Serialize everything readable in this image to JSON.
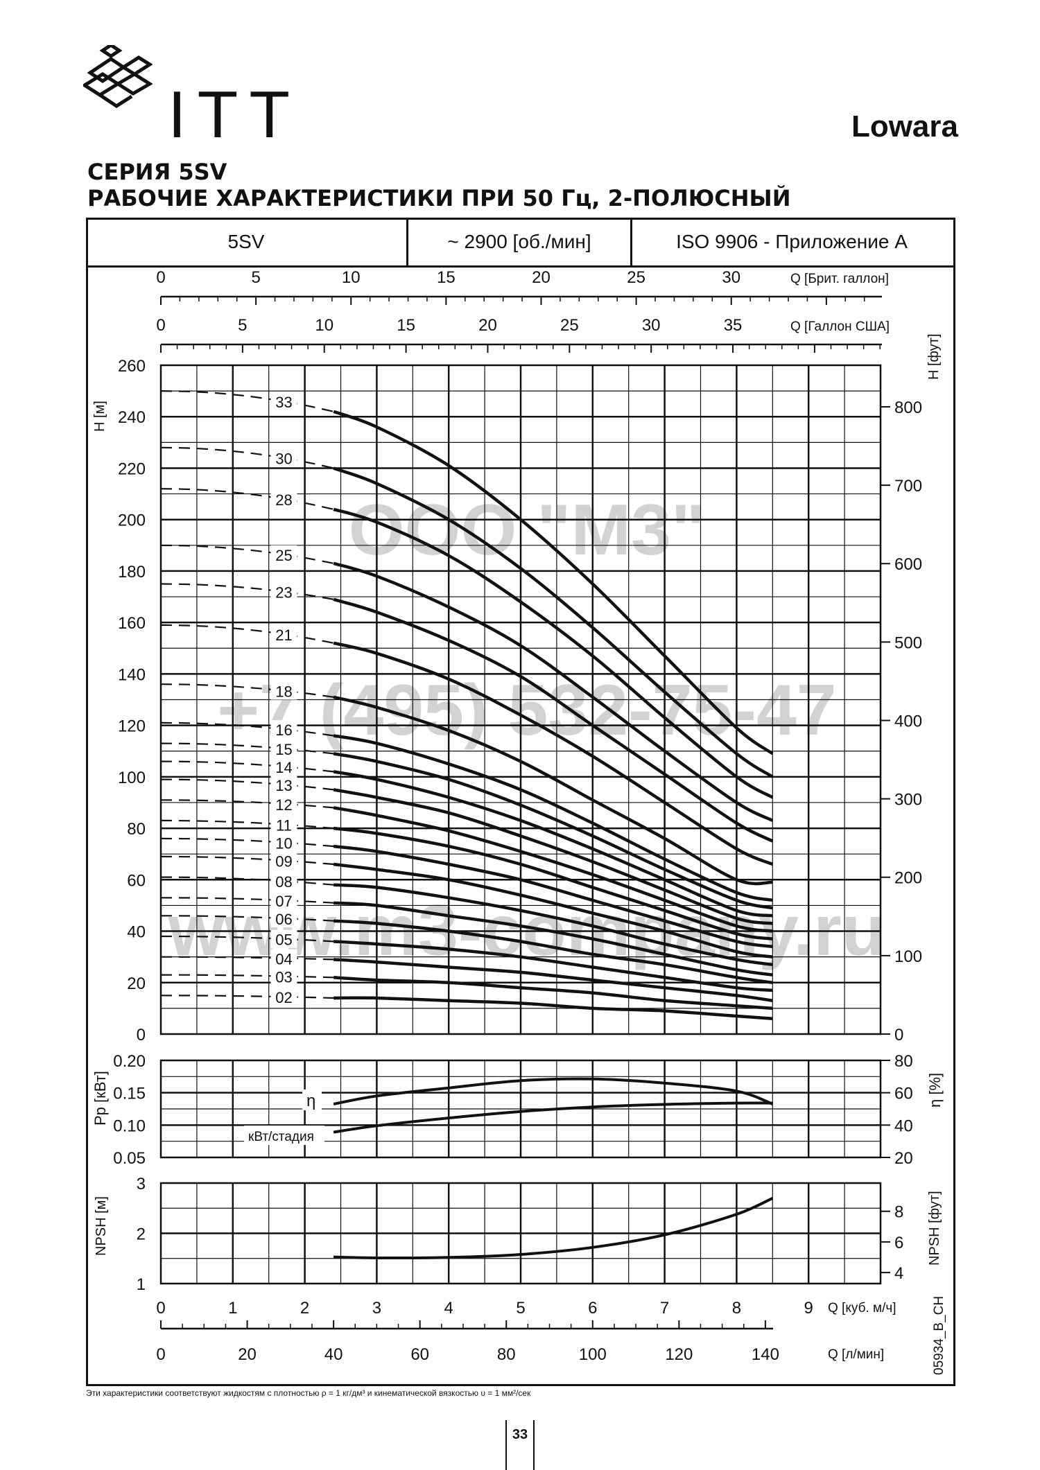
{
  "header": {
    "brand": "ITT",
    "brand2": "Lowara",
    "title_line1": "СЕРИЯ 5SV",
    "title_line2": "РАБОЧИЕ ХАРАКТЕРИСТИКИ ПРИ 50 Гц, 2-ПОЛЮСНЫЙ"
  },
  "table_header": {
    "model": "5SV",
    "speed": "~ 2900 [об./мин]",
    "standard": "ISO 9906 - Приложение A"
  },
  "watermarks": [
    "ООО \"М3\"",
    "+7 (495) 532-75-47",
    "www.m3-company.ru"
  ],
  "footnote": "Эти характеристики соответствуют жидкостям с плотностью ρ = 1 кг/дм³ и кинематической вязкостью υ = 1 мм²/сек",
  "page_number": "33",
  "code": "05934_B_CH",
  "colors": {
    "ink": "#111111",
    "watermark": "#d2d2d2"
  },
  "chart_data": [
    {
      "type": "line",
      "name": "head",
      "x_unit": "Q [куб. м/ч]",
      "xlim": [
        0,
        10
      ],
      "ylim": [
        0,
        260
      ],
      "ylabel": "H [м]",
      "ylabel_right": "H [фут]",
      "y_ticks": [
        0,
        20,
        40,
        60,
        80,
        100,
        120,
        140,
        160,
        180,
        200,
        220,
        240,
        260
      ],
      "y_right_ticks": [
        0,
        100,
        200,
        300,
        400,
        500,
        600,
        700,
        800
      ],
      "top_axes": [
        {
          "label": "Q [Брит. галлон]",
          "ticks": [
            "0",
            "5",
            "10",
            "15",
            "20",
            "25",
            "30"
          ],
          "step": 5,
          "scale": 0.2642
        },
        {
          "label": "Q [Галлон США]",
          "ticks": [
            "0",
            "5",
            "10",
            "15",
            "20",
            "25",
            "30",
            "35"
          ],
          "step": 5,
          "scale": 0.2271
        }
      ],
      "dashed_range": [
        0,
        2.4
      ],
      "solid_range": [
        2.4,
        8.5
      ],
      "series": [
        {
          "name": "33",
          "H0": 250,
          "values": [
            [
              2.4,
              242
            ],
            [
              3.0,
              236
            ],
            [
              4.0,
              221
            ],
            [
              5.0,
              200
            ],
            [
              6.0,
              175
            ],
            [
              7.0,
              147
            ],
            [
              8.0,
              119
            ],
            [
              8.5,
              109
            ]
          ]
        },
        {
          "name": "30",
          "H0": 228,
          "values": [
            [
              2.4,
              220
            ],
            [
              3.0,
              214
            ],
            [
              4.0,
              200
            ],
            [
              5.0,
              181
            ],
            [
              6.0,
              158
            ],
            [
              7.0,
              133
            ],
            [
              8.0,
              109
            ],
            [
              8.5,
              100
            ]
          ]
        },
        {
          "name": "28",
          "H0": 212,
          "values": [
            [
              2.4,
              204
            ],
            [
              3.0,
              199
            ],
            [
              4.0,
              186
            ],
            [
              5.0,
              168
            ],
            [
              6.0,
              147
            ],
            [
              7.0,
              123
            ],
            [
              8.0,
              100
            ],
            [
              8.5,
              92
            ]
          ]
        },
        {
          "name": "25",
          "H0": 190,
          "values": [
            [
              2.4,
              183
            ],
            [
              3.0,
              178
            ],
            [
              4.0,
              166
            ],
            [
              5.0,
              151
            ],
            [
              6.0,
              131
            ],
            [
              7.0,
              110
            ],
            [
              8.0,
              90
            ],
            [
              8.5,
              83
            ]
          ]
        },
        {
          "name": "23",
          "H0": 175,
          "values": [
            [
              2.4,
              169
            ],
            [
              3.0,
              164
            ],
            [
              4.0,
              153
            ],
            [
              5.0,
              139
            ],
            [
              6.0,
              120
            ],
            [
              7.0,
              101
            ],
            [
              8.0,
              82
            ],
            [
              8.5,
              75
            ]
          ]
        },
        {
          "name": "21",
          "H0": 159,
          "values": [
            [
              2.4,
              152
            ],
            [
              3.0,
              148
            ],
            [
              4.0,
              138
            ],
            [
              5.0,
              124
            ],
            [
              6.0,
              108
            ],
            [
              7.0,
              90
            ],
            [
              8.0,
              72
            ],
            [
              8.5,
              66
            ]
          ]
        },
        {
          "name": "18",
          "H0": 136,
          "values": [
            [
              2.4,
              131
            ],
            [
              3.0,
              127
            ],
            [
              4.0,
              118
            ],
            [
              5.0,
              106
            ],
            [
              6.0,
              91
            ],
            [
              7.0,
              76
            ],
            [
              8.0,
              60
            ],
            [
              8.5,
              59
            ]
          ]
        },
        {
          "name": "16",
          "H0": 121,
          "values": [
            [
              2.4,
              116
            ],
            [
              3.0,
              113
            ],
            [
              4.0,
              105
            ],
            [
              5.0,
              95
            ],
            [
              6.0,
              82
            ],
            [
              7.0,
              68
            ],
            [
              8.0,
              55
            ],
            [
              8.5,
              52
            ]
          ]
        },
        {
          "name": "15",
          "H0": 113,
          "values": [
            [
              2.4,
              109
            ],
            [
              3.0,
              106
            ],
            [
              4.0,
              99
            ],
            [
              5.0,
              89
            ],
            [
              6.0,
              77
            ],
            [
              7.0,
              64
            ],
            [
              8.0,
              52
            ],
            [
              8.5,
              49
            ]
          ]
        },
        {
          "name": "14",
          "H0": 106,
          "values": [
            [
              2.4,
              102
            ],
            [
              3.0,
              99
            ],
            [
              4.0,
              92
            ],
            [
              5.0,
              83
            ],
            [
              6.0,
              72
            ],
            [
              7.0,
              60
            ],
            [
              8.0,
              48
            ],
            [
              8.5,
              46
            ]
          ]
        },
        {
          "name": "13",
          "H0": 99,
          "values": [
            [
              2.4,
              95
            ],
            [
              3.0,
              92
            ],
            [
              4.0,
              86
            ],
            [
              5.0,
              77
            ],
            [
              6.0,
              67
            ],
            [
              7.0,
              56
            ],
            [
              8.0,
              45
            ],
            [
              8.5,
              43
            ]
          ]
        },
        {
          "name": "12",
          "H0": 91,
          "values": [
            [
              2.4,
              88
            ],
            [
              3.0,
              85
            ],
            [
              4.0,
              79
            ],
            [
              5.0,
              71
            ],
            [
              6.0,
              62
            ],
            [
              7.0,
              52
            ],
            [
              8.0,
              42
            ],
            [
              8.5,
              40
            ]
          ]
        },
        {
          "name": "11",
          "H0": 83,
          "values": [
            [
              2.4,
              80
            ],
            [
              3.0,
              78
            ],
            [
              4.0,
              73
            ],
            [
              5.0,
              66
            ],
            [
              6.0,
              57
            ],
            [
              7.0,
              48
            ],
            [
              8.0,
              39
            ],
            [
              8.5,
              37
            ]
          ]
        },
        {
          "name": "10",
          "H0": 76,
          "values": [
            [
              2.4,
              73
            ],
            [
              3.0,
              71
            ],
            [
              4.0,
              66
            ],
            [
              5.0,
              60
            ],
            [
              6.0,
              52
            ],
            [
              7.0,
              44
            ],
            [
              8.0,
              36
            ],
            [
              8.5,
              34
            ]
          ]
        },
        {
          "name": "09",
          "H0": 69,
          "values": [
            [
              2.4,
              66
            ],
            [
              3.0,
              64
            ],
            [
              4.0,
              60
            ],
            [
              5.0,
              54
            ],
            [
              6.0,
              47
            ],
            [
              7.0,
              40
            ],
            [
              8.0,
              32
            ],
            [
              8.5,
              30
            ]
          ]
        },
        {
          "name": "08",
          "H0": 61,
          "values": [
            [
              2.4,
              58
            ],
            [
              3.0,
              57
            ],
            [
              4.0,
              53
            ],
            [
              5.0,
              48
            ],
            [
              6.0,
              42
            ],
            [
              7.0,
              35
            ],
            [
              8.0,
              29
            ],
            [
              8.5,
              27
            ]
          ]
        },
        {
          "name": "07",
          "H0": 53,
          "values": [
            [
              2.4,
              51
            ],
            [
              3.0,
              50
            ],
            [
              4.0,
              46
            ],
            [
              5.0,
              42
            ],
            [
              6.0,
              37
            ],
            [
              7.0,
              31
            ],
            [
              8.0,
              25
            ],
            [
              8.5,
              23
            ]
          ]
        },
        {
          "name": "06",
          "H0": 46,
          "values": [
            [
              2.4,
              44
            ],
            [
              3.0,
              43
            ],
            [
              4.0,
              40
            ],
            [
              5.0,
              36
            ],
            [
              6.0,
              31
            ],
            [
              7.0,
              27
            ],
            [
              8.0,
              22
            ],
            [
              8.5,
              20
            ]
          ]
        },
        {
          "name": "05",
          "H0": 38,
          "values": [
            [
              2.4,
              36
            ],
            [
              3.0,
              35
            ],
            [
              4.0,
              33
            ],
            [
              5.0,
              30
            ],
            [
              6.0,
              26
            ],
            [
              7.0,
              22
            ],
            [
              8.0,
              18
            ],
            [
              8.5,
              17
            ]
          ]
        },
        {
          "name": "04",
          "H0": 30,
          "values": [
            [
              2.4,
              29
            ],
            [
              3.0,
              28
            ],
            [
              4.0,
              26
            ],
            [
              5.0,
              24
            ],
            [
              6.0,
              21
            ],
            [
              7.0,
              18
            ],
            [
              8.0,
              15
            ],
            [
              8.5,
              13
            ]
          ]
        },
        {
          "name": "03",
          "H0": 23,
          "values": [
            [
              2.4,
              22
            ],
            [
              3.0,
              21
            ],
            [
              4.0,
              20
            ],
            [
              5.0,
              18
            ],
            [
              6.0,
              16
            ],
            [
              7.0,
              13
            ],
            [
              8.0,
              11
            ],
            [
              8.5,
              10
            ]
          ]
        },
        {
          "name": "02",
          "H0": 15,
          "values": [
            [
              2.4,
              14
            ],
            [
              3.0,
              14
            ],
            [
              4.0,
              13
            ],
            [
              5.0,
              12
            ],
            [
              6.0,
              10
            ],
            [
              7.0,
              9
            ],
            [
              8.0,
              7
            ],
            [
              8.5,
              6
            ]
          ]
        }
      ]
    },
    {
      "type": "line",
      "name": "power_efficiency",
      "ylim": [
        0.05,
        0.2
      ],
      "ylabel": "Pp [кВт]",
      "ylabel_right": "η [%]",
      "y_ticks": [
        "0.05",
        "0.10",
        "0.15",
        "0.20"
      ],
      "y_right_lim": [
        20,
        80
      ],
      "y_right_ticks": [
        20,
        40,
        60,
        80
      ],
      "series": [
        {
          "name": "η",
          "axis": "right",
          "values": [
            [
              2.4,
              53
            ],
            [
              3.0,
              58
            ],
            [
              4.0,
              63
            ],
            [
              5.0,
              67.5
            ],
            [
              6.0,
              68.5
            ],
            [
              7.0,
              66
            ],
            [
              8.0,
              61
            ],
            [
              8.5,
              53
            ]
          ]
        },
        {
          "name": "кВт/стадия",
          "axis": "left",
          "values": [
            [
              2.4,
              0.089
            ],
            [
              3.0,
              0.099
            ],
            [
              4.0,
              0.111
            ],
            [
              5.0,
              0.121
            ],
            [
              6.0,
              0.128
            ],
            [
              7.0,
              0.132
            ],
            [
              8.0,
              0.134
            ],
            [
              8.5,
              0.134
            ]
          ]
        }
      ]
    },
    {
      "type": "line",
      "name": "npsh",
      "ylim": [
        1,
        3
      ],
      "ylabel": "NPSH [м]",
      "ylabel_right": "NPSH [фут]",
      "y_ticks": [
        1,
        2,
        3
      ],
      "y_right_ticks": [
        4,
        6,
        8
      ],
      "series": [
        {
          "name": "NPSH",
          "values": [
            [
              2.4,
              1.53
            ],
            [
              3.0,
              1.51
            ],
            [
              4.0,
              1.52
            ],
            [
              5.0,
              1.58
            ],
            [
              6.0,
              1.72
            ],
            [
              7.0,
              1.97
            ],
            [
              8.0,
              2.38
            ],
            [
              8.5,
              2.7
            ]
          ]
        }
      ],
      "x_axes": [
        {
          "label": "Q [куб. м/ч]",
          "ticks": [
            "0",
            "1",
            "2",
            "3",
            "4",
            "5",
            "6",
            "7",
            "8",
            "9"
          ],
          "step": 1
        },
        {
          "label": "Q [л/мин]",
          "ticks": [
            "0",
            "20",
            "40",
            "60",
            "80",
            "100",
            "120",
            "140"
          ],
          "step": 20,
          "scale": 16.667
        }
      ]
    }
  ]
}
